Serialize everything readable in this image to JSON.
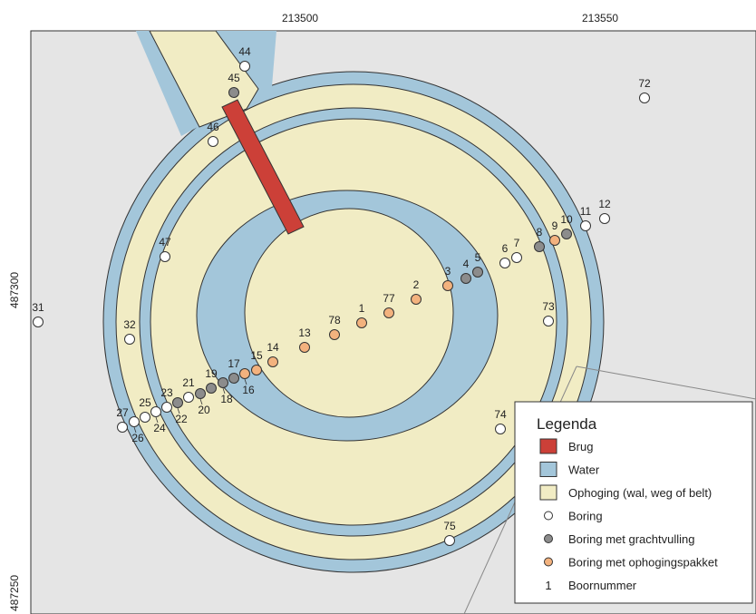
{
  "axes": {
    "x_ticks": [
      "213500",
      "213550"
    ],
    "y_ticks": [
      "487300",
      "487250"
    ]
  },
  "colors": {
    "background": "#e5e5e5",
    "water": "#a3c6da",
    "ophoging": "#f1ecc4",
    "brug": "#cc4038",
    "boring": "#ffffff",
    "grachtvulling": "#8c8c8c",
    "ophogingspakket": "#f3b27e"
  },
  "legend": {
    "title": "Legenda",
    "items": [
      {
        "key": "brug",
        "label": "Brug",
        "symbol": "square"
      },
      {
        "key": "water",
        "label": "Water",
        "symbol": "square"
      },
      {
        "key": "ophoging",
        "label": "Ophoging (wal, weg of belt)",
        "symbol": "square"
      },
      {
        "key": "boring",
        "label": "Boring",
        "symbol": "dot"
      },
      {
        "key": "grachtvulling",
        "label": "Boring met grachtvulling",
        "symbol": "dot"
      },
      {
        "key": "ophogingspakket",
        "label": "Boring met ophogingspakket",
        "symbol": "dot"
      },
      {
        "key": "boornummer",
        "label": "Boornummer",
        "symbol": "number",
        "sample": "1"
      }
    ]
  },
  "borings": [
    {
      "nr": "1",
      "type": "ophogingspakket"
    },
    {
      "nr": "2",
      "type": "ophogingspakket"
    },
    {
      "nr": "3",
      "type": "ophogingspakket"
    },
    {
      "nr": "4",
      "type": "grachtvulling"
    },
    {
      "nr": "5",
      "type": "grachtvulling"
    },
    {
      "nr": "6",
      "type": "boring"
    },
    {
      "nr": "7",
      "type": "boring"
    },
    {
      "nr": "8",
      "type": "grachtvulling"
    },
    {
      "nr": "9",
      "type": "ophogingspakket"
    },
    {
      "nr": "10",
      "type": "grachtvulling"
    },
    {
      "nr": "11",
      "type": "boring"
    },
    {
      "nr": "12",
      "type": "boring"
    },
    {
      "nr": "13",
      "type": "ophogingspakket"
    },
    {
      "nr": "14",
      "type": "ophogingspakket"
    },
    {
      "nr": "15",
      "type": "ophogingspakket"
    },
    {
      "nr": "16",
      "type": "ophogingspakket"
    },
    {
      "nr": "17",
      "type": "grachtvulling"
    },
    {
      "nr": "18",
      "type": "grachtvulling"
    },
    {
      "nr": "19",
      "type": "grachtvulling"
    },
    {
      "nr": "20",
      "type": "grachtvulling"
    },
    {
      "nr": "21",
      "type": "boring"
    },
    {
      "nr": "22",
      "type": "grachtvulling"
    },
    {
      "nr": "23",
      "type": "boring"
    },
    {
      "nr": "24",
      "type": "boring"
    },
    {
      "nr": "25",
      "type": "boring"
    },
    {
      "nr": "26",
      "type": "boring"
    },
    {
      "nr": "27",
      "type": "boring"
    },
    {
      "nr": "31",
      "type": "boring"
    },
    {
      "nr": "32",
      "type": "boring"
    },
    {
      "nr": "44",
      "type": "boring"
    },
    {
      "nr": "45",
      "type": "grachtvulling"
    },
    {
      "nr": "46",
      "type": "boring"
    },
    {
      "nr": "47",
      "type": "boring"
    },
    {
      "nr": "72",
      "type": "boring"
    },
    {
      "nr": "73",
      "type": "boring"
    },
    {
      "nr": "74",
      "type": "boring"
    },
    {
      "nr": "75",
      "type": "boring"
    },
    {
      "nr": "77",
      "type": "ophogingspakket"
    },
    {
      "nr": "78",
      "type": "ophogingspakket"
    }
  ]
}
